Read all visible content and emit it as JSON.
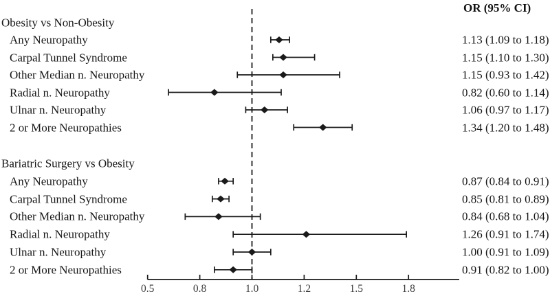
{
  "colors": {
    "ink": "#161616",
    "line": "#1a1a1a",
    "tick_label": "#3d3d3d",
    "background": "#ffffff"
  },
  "or_header": "OR (95% CI)",
  "chart_data": {
    "type": "forest",
    "title": "",
    "xlabel": "",
    "ylabel": "",
    "xlim": [
      0.5,
      2.0
    ],
    "grid": false,
    "reference_line": 1.0,
    "reference_line_style": "dashed",
    "x_axis": {
      "scale": "linear",
      "tick_labels": [
        "0.5",
        "0.8",
        "1.0",
        "1.2",
        "1.5",
        "1.8"
      ],
      "tick_values": [
        0.5,
        0.75,
        1.0,
        1.25,
        1.5,
        1.75
      ]
    },
    "value_column_header": "OR (95% CI)",
    "groups": [
      {
        "label": "Obesity vs Non-Obesity",
        "rows": [
          {
            "label": "Any Neuropathy",
            "or": 1.13,
            "ci_low": 1.09,
            "ci_high": 1.18,
            "display": "1.13 (1.09 to 1.18)"
          },
          {
            "label": "Carpal Tunnel Syndrome",
            "or": 1.15,
            "ci_low": 1.1,
            "ci_high": 1.3,
            "display": "1.15 (1.10 to 1.30)"
          },
          {
            "label": "Other Median n. Neuropathy",
            "or": 1.15,
            "ci_low": 0.93,
            "ci_high": 1.42,
            "display": "1.15 (0.93 to 1.42)"
          },
          {
            "label": "Radial n. Neuropathy",
            "or": 0.82,
            "ci_low": 0.6,
            "ci_high": 1.14,
            "display": "0.82 (0.60 to 1.14)"
          },
          {
            "label": "Ulnar n. Neuropathy",
            "or": 1.06,
            "ci_low": 0.97,
            "ci_high": 1.17,
            "display": "1.06 (0.97 to 1.17)"
          },
          {
            "label": "2 or More Neuropathies",
            "or": 1.34,
            "ci_low": 1.2,
            "ci_high": 1.48,
            "display": "1.34 (1.20 to 1.48)"
          }
        ]
      },
      {
        "label": "Bariatric Surgery vs Obesity",
        "rows": [
          {
            "label": "Any Neuropathy",
            "or": 0.87,
            "ci_low": 0.84,
            "ci_high": 0.91,
            "display": "0.87 (0.84 to 0.91)"
          },
          {
            "label": "Carpal Tunnel Syndrome",
            "or": 0.85,
            "ci_low": 0.81,
            "ci_high": 0.89,
            "display": "0.85 (0.81 to 0.89)"
          },
          {
            "label": "Other Median n. Neuropathy",
            "or": 0.84,
            "ci_low": 0.68,
            "ci_high": 1.04,
            "display": "0.84 (0.68 to 1.04)"
          },
          {
            "label": "Radial n. Neuropathy",
            "or": 1.26,
            "ci_low": 0.91,
            "ci_high": 1.74,
            "display": "1.26 (0.91 to 1.74)"
          },
          {
            "label": "Ulnar n. Neuropathy",
            "or": 1.0,
            "ci_low": 0.91,
            "ci_high": 1.09,
            "display": "1.00 (0.91 to 1.09)"
          },
          {
            "label": "2 or More Neuropathies",
            "or": 0.91,
            "ci_low": 0.82,
            "ci_high": 1.0,
            "display": "0.91 (0.82 to 1.00)"
          }
        ]
      }
    ]
  }
}
